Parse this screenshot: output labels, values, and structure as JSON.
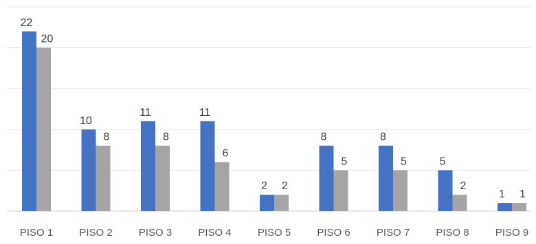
{
  "chart_data": {
    "type": "bar",
    "categories": [
      "PISO 1",
      "PISO 2",
      "PISO 3",
      "PISO 4",
      "PISO 5",
      "PISO 6",
      "PISO 7",
      "PISO 8",
      "PISO 9"
    ],
    "series": [
      {
        "values": [
          22,
          10,
          11,
          11,
          2,
          8,
          8,
          5,
          1
        ],
        "color": "#4472C4",
        "labels": [
          "22",
          "10",
          "11",
          "11",
          "2",
          "8",
          "8",
          "5",
          "1"
        ]
      },
      {
        "values": [
          20,
          8,
          8,
          6,
          2,
          5,
          5,
          2,
          1
        ],
        "color": "#A5A5A5",
        "labels": [
          "20",
          "8",
          "8",
          "6",
          "2",
          "5",
          "5",
          "2",
          "1"
        ]
      }
    ],
    "ylim": [
      0,
      25
    ],
    "grid": true,
    "legend": "none"
  }
}
